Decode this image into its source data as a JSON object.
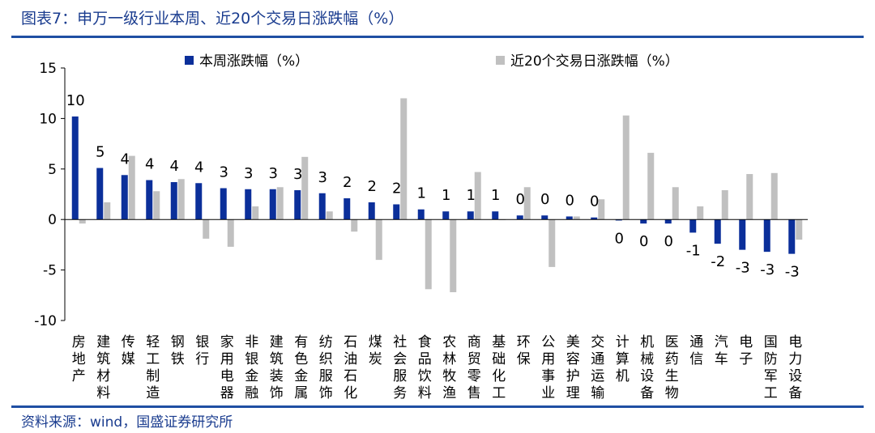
{
  "header": {
    "title": "图表7：申万一级行业本周、近20个交易日涨跌幅（%）"
  },
  "footer": {
    "source": "资料来源：wind，国盛证券研究所"
  },
  "colors": {
    "series1": "#0b2f9a",
    "series2": "#c0c0c0",
    "accent": "#1f4fa3"
  },
  "chart_data": {
    "type": "bar",
    "title": "",
    "xlabel": "",
    "ylabel": "",
    "ylim": [
      -10,
      15
    ],
    "yticks": [
      15,
      10,
      5,
      0,
      -5,
      -10
    ],
    "grid": false,
    "legend_position": "top",
    "categories": [
      "房地产",
      "建筑材料",
      "传媒",
      "轻工制造",
      "钢铁",
      "银行",
      "家用电器",
      "非银金融",
      "建筑装饰",
      "有色金属",
      "纺织服饰",
      "石油石化",
      "煤炭",
      "社会服务",
      "食品饮料",
      "农林牧渔",
      "商贸零售",
      "基础化工",
      "环保",
      "公用事业",
      "美容护理",
      "交通运输",
      "计算机",
      "机械设备",
      "医药生物",
      "通信",
      "汽车",
      "电子",
      "国防军工",
      "电力设备"
    ],
    "series": [
      {
        "name": "本周涨跌幅（%）",
        "values": [
          10.2,
          5.1,
          4.4,
          3.9,
          3.7,
          3.6,
          3.1,
          3.0,
          3.0,
          2.9,
          2.6,
          2.1,
          1.7,
          1.5,
          1.0,
          0.8,
          0.8,
          0.8,
          0.4,
          0.4,
          0.3,
          0.2,
          -0.1,
          -0.4,
          -0.4,
          -1.3,
          -2.4,
          -3.0,
          -3.2,
          -3.4
        ],
        "labels": [
          "10",
          "5",
          "4",
          "4",
          "4",
          "4",
          "3",
          "3",
          "3",
          "3",
          "3",
          "2",
          "2",
          "2",
          "1",
          "1",
          "1",
          "1",
          "0",
          "0",
          "0",
          "0",
          "0",
          "0",
          "0",
          "-1",
          "-2",
          "-3",
          "-3",
          "-3"
        ]
      },
      {
        "name": "近20个交易日涨跌幅（%）",
        "values": [
          -0.4,
          1.7,
          6.3,
          2.8,
          4.0,
          -1.9,
          -2.7,
          1.3,
          3.2,
          6.2,
          0.8,
          -1.2,
          -4.0,
          12.0,
          -6.9,
          -7.2,
          4.7,
          0.0,
          3.2,
          -4.7,
          0.3,
          2.0,
          10.3,
          6.6,
          3.2,
          1.3,
          2.9,
          4.5,
          4.6,
          -2.0
        ]
      }
    ]
  }
}
